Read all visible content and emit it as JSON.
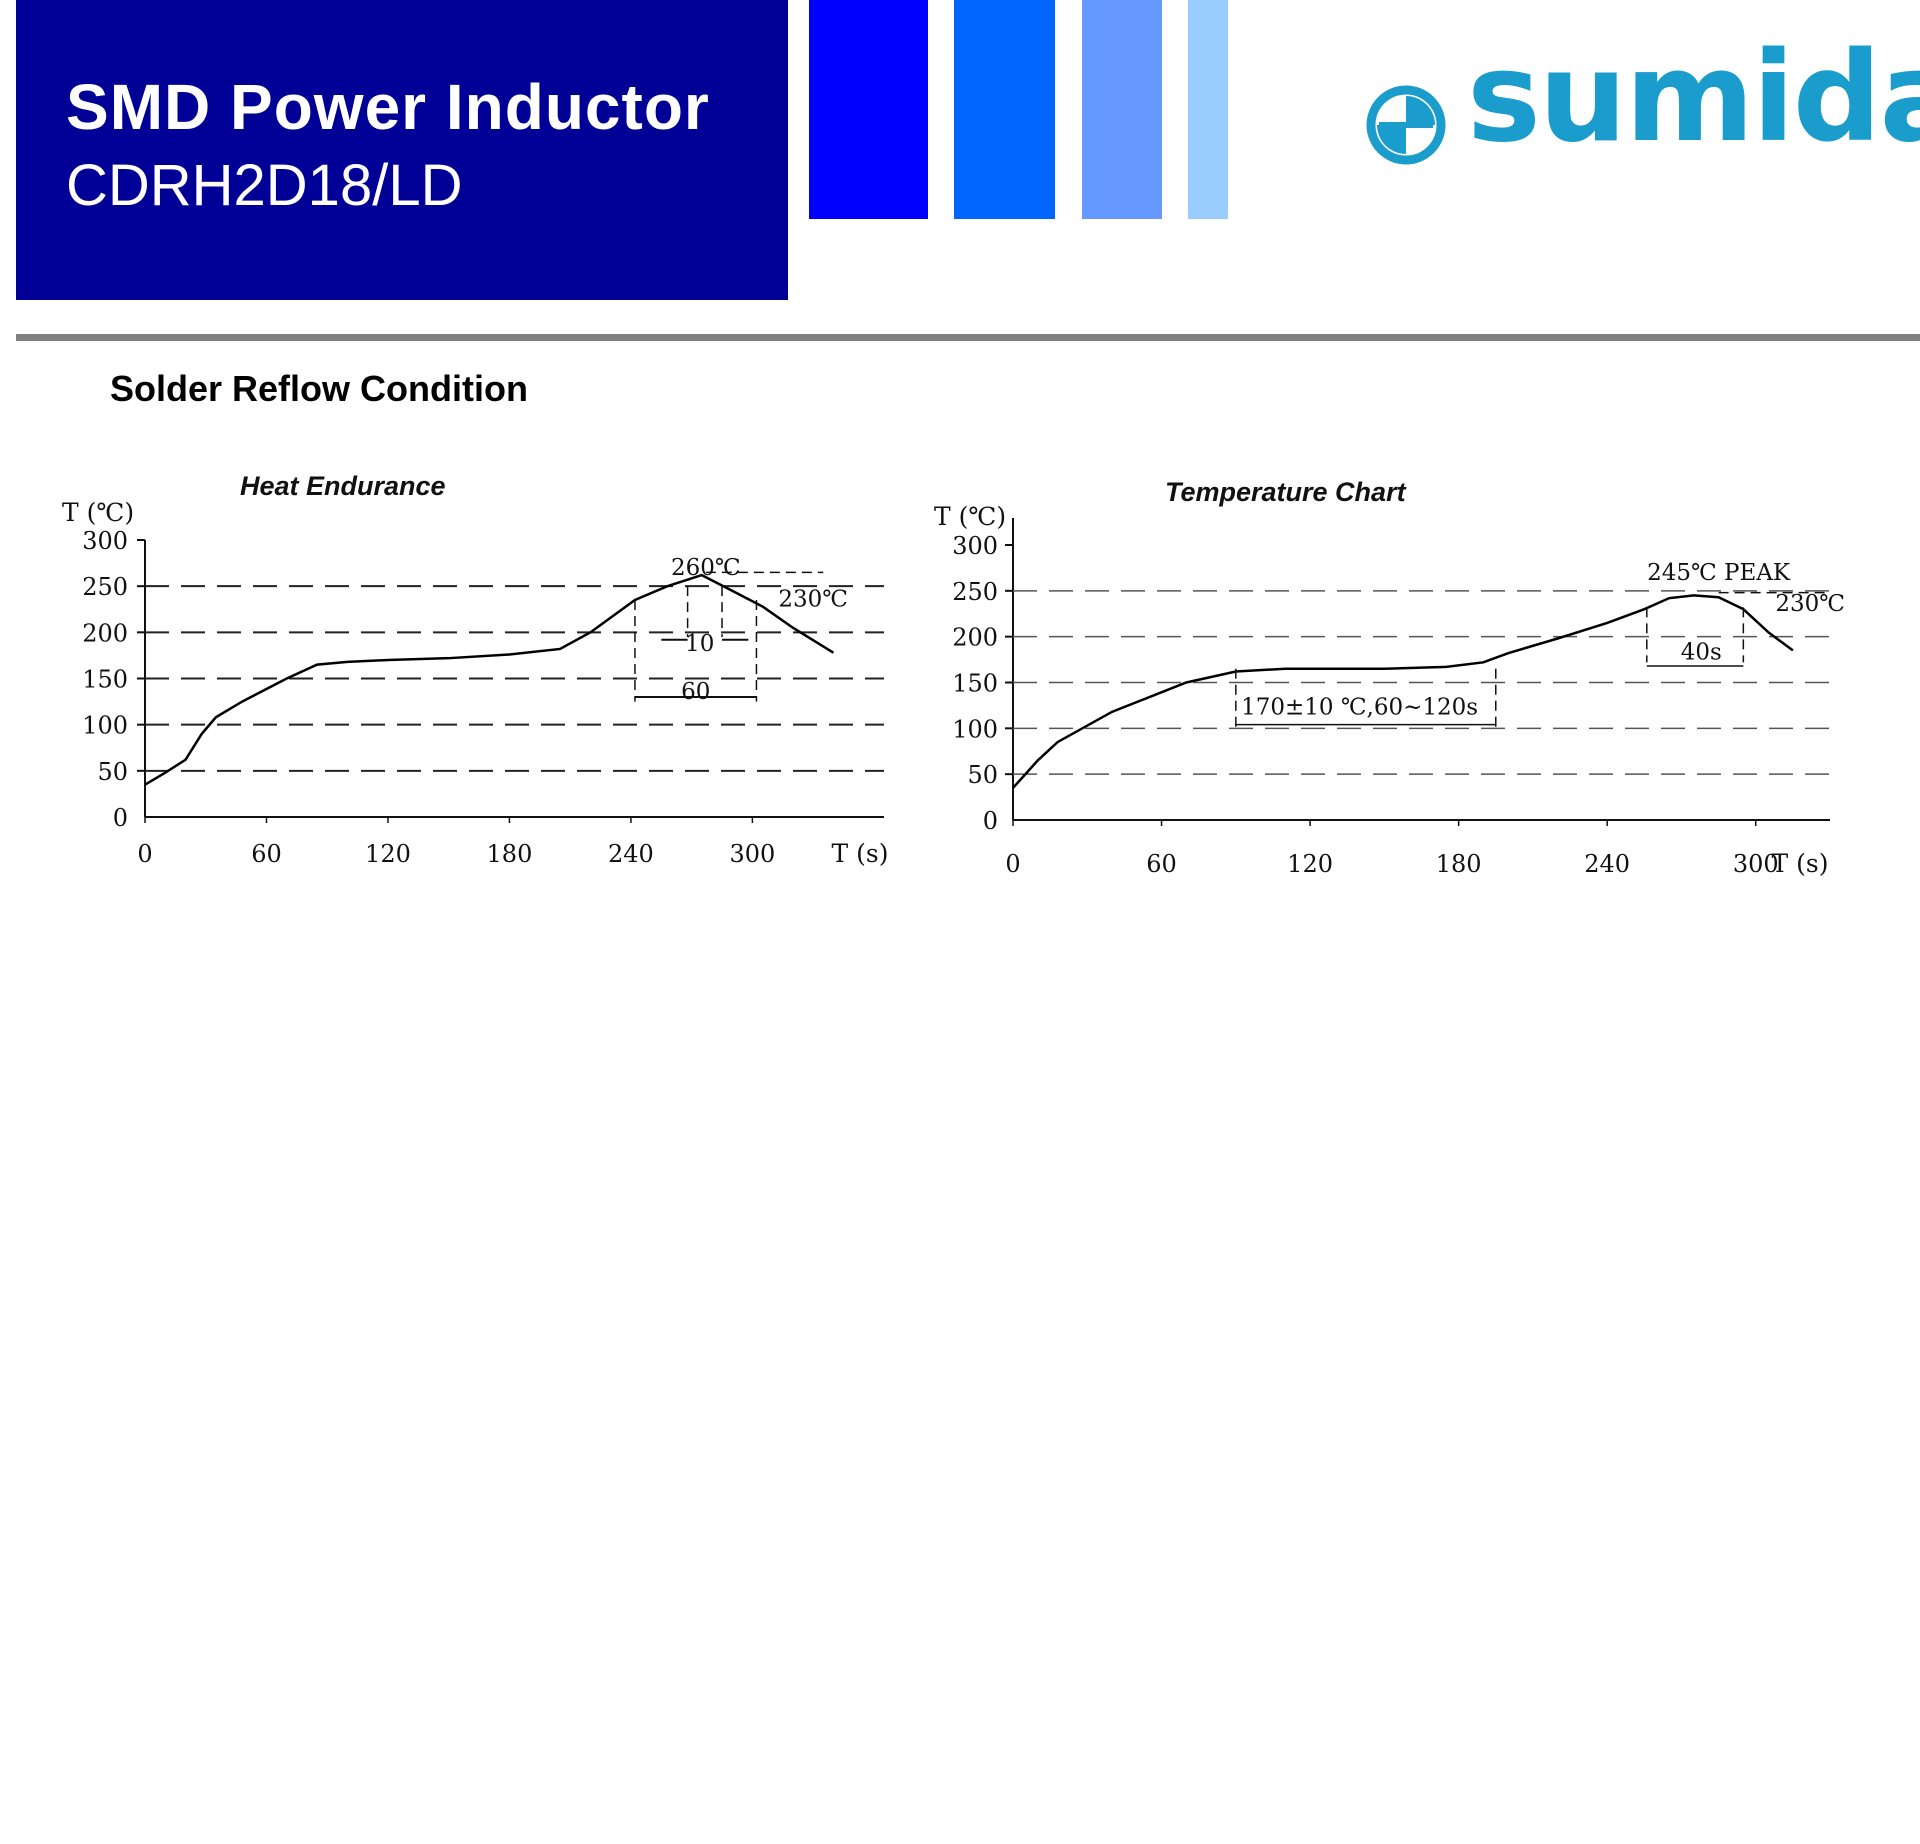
{
  "header": {
    "title": "SMD Power Inductor",
    "subtitle": "CDRH2D18/LD",
    "colors": {
      "header_bg": "#000096",
      "bars": [
        "#0000ff",
        "#0066ff",
        "#6699ff",
        "#99ccff"
      ],
      "brand": "#1a9ccc",
      "rule": "#808080"
    }
  },
  "logo": {
    "text": "sumida",
    "icon": "sumida-emblem-icon"
  },
  "section_title": "Solder Reflow Condition",
  "chart_data": [
    {
      "type": "line",
      "title": "Heat Endurance",
      "ylabel": "T (℃)",
      "xlabel": "T (s)",
      "x_ticks": [
        0,
        60,
        120,
        180,
        240,
        300
      ],
      "y_ticks": [
        0,
        50,
        100,
        150,
        200,
        250,
        300
      ],
      "xlim": [
        0,
        365
      ],
      "ylim": [
        0,
        300
      ],
      "grid": "horizontal dashed at 50, 100, 150, 200, 250",
      "series": [
        {
          "x": [
            0,
            10,
            20,
            28,
            35,
            48,
            70,
            85,
            100,
            120,
            150,
            180,
            205,
            220,
            242,
            258,
            275,
            290,
            305,
            320,
            340
          ],
          "y": [
            35,
            48,
            62,
            90,
            108,
            125,
            150,
            165,
            168,
            170,
            172,
            176,
            182,
            200,
            235,
            250,
            262,
            245,
            228,
            205,
            178
          ]
        }
      ],
      "annotations": [
        {
          "text": "260℃",
          "x": 277,
          "y": 262
        },
        {
          "text": "230℃",
          "x": 330,
          "y": 228
        },
        {
          "text": "10",
          "x": 274,
          "y": 180
        },
        {
          "text": "60",
          "x": 272,
          "y": 128
        }
      ]
    },
    {
      "type": "line",
      "title": "Temperature Chart",
      "ylabel": "T (℃)",
      "xlabel": "T (s)",
      "x_ticks": [
        0,
        60,
        120,
        180,
        240,
        300
      ],
      "y_ticks": [
        0,
        50,
        100,
        150,
        200,
        250,
        300
      ],
      "xlim": [
        0,
        330
      ],
      "ylim": [
        0,
        300
      ],
      "grid": "horizontal dashed at 50, 100, 150, 200, 250",
      "series": [
        {
          "x": [
            0,
            10,
            18,
            40,
            70,
            90,
            110,
            150,
            175,
            190,
            200,
            220,
            240,
            255,
            265,
            275,
            285,
            295,
            305,
            315
          ],
          "y": [
            35,
            65,
            85,
            118,
            150,
            162,
            165,
            165,
            167,
            172,
            182,
            198,
            215,
            230,
            242,
            245,
            243,
            230,
            205,
            185
          ]
        }
      ],
      "annotations": [
        {
          "text": "245℃ PEAK",
          "x": 285,
          "y": 262
        },
        {
          "text": "230℃",
          "x": 322,
          "y": 228
        },
        {
          "text": "40s",
          "x": 278,
          "y": 175
        },
        {
          "text": "170±10 ℃,60~120s",
          "x": 140,
          "y": 115
        }
      ]
    }
  ]
}
